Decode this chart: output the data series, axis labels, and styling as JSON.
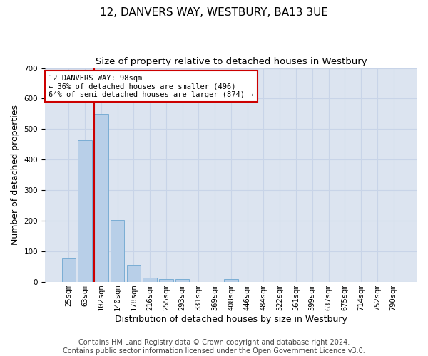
{
  "title": "12, DANVERS WAY, WESTBURY, BA13 3UE",
  "subtitle": "Size of property relative to detached houses in Westbury",
  "xlabel": "Distribution of detached houses by size in Westbury",
  "ylabel": "Number of detached properties",
  "categories": [
    "25sqm",
    "63sqm",
    "102sqm",
    "140sqm",
    "178sqm",
    "216sqm",
    "255sqm",
    "293sqm",
    "331sqm",
    "369sqm",
    "408sqm",
    "446sqm",
    "484sqm",
    "522sqm",
    "561sqm",
    "599sqm",
    "637sqm",
    "675sqm",
    "714sqm",
    "752sqm",
    "790sqm"
  ],
  "bar_heights": [
    78,
    463,
    550,
    203,
    57,
    15,
    10,
    10,
    0,
    0,
    9,
    0,
    0,
    0,
    0,
    0,
    0,
    0,
    0,
    0,
    0
  ],
  "bar_color": "#b8cfe8",
  "bar_edge_color": "#7aadd4",
  "marker_line_color": "#cc0000",
  "annotation_box_color": "#cc0000",
  "ylim": [
    0,
    700
  ],
  "yticks": [
    0,
    100,
    200,
    300,
    400,
    500,
    600,
    700
  ],
  "grid_color": "#c8d4e8",
  "bg_color": "#dce4f0",
  "title_fontsize": 11,
  "subtitle_fontsize": 9.5,
  "xlabel_fontsize": 9,
  "ylabel_fontsize": 9,
  "tick_fontsize": 7.5,
  "footer_fontsize": 7,
  "footer_line1": "Contains HM Land Registry data © Crown copyright and database right 2024.",
  "footer_line2": "Contains public sector information licensed under the Open Government Licence v3.0.",
  "ann_title": "12 DANVERS WAY: 98sqm",
  "ann_line2": "← 36% of detached houses are smaller (496)",
  "ann_line3": "64% of semi-detached houses are larger (874) →"
}
